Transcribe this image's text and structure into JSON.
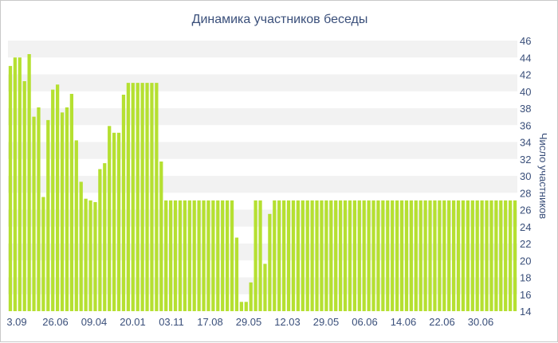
{
  "chart_data": {
    "type": "bar",
    "title": "Динамика участников беседы",
    "xlabel": "",
    "ylabel": "Число участников",
    "ylim": [
      14,
      46
    ],
    "yticks": [
      14,
      16,
      18,
      20,
      22,
      24,
      26,
      28,
      30,
      32,
      34,
      36,
      38,
      40,
      42,
      44,
      46
    ],
    "xtick_labels": [
      "3.09",
      "26.06",
      "09.04",
      "20.01",
      "03.11",
      "17.08",
      "29.05",
      "12.03",
      "29.05",
      "06.06",
      "14.06",
      "22.06",
      "30.06"
    ],
    "bar_color": "#b5e031",
    "band_color": "#f2f2f2",
    "values": [
      43,
      44,
      44,
      41.2,
      44.4,
      37,
      38.1,
      27.5,
      36.6,
      40.2,
      40.8,
      37.5,
      38.1,
      39.7,
      34.2,
      29.3,
      27.3,
      27.1,
      26.9,
      30.8,
      31.5,
      35.9,
      35.1,
      35.1,
      39.6,
      41,
      41,
      41,
      41,
      41,
      41,
      41,
      31.7,
      27.1,
      27.1,
      27.1,
      27.1,
      27.1,
      27.1,
      27.1,
      27.1,
      27.1,
      27.1,
      27.1,
      27.1,
      27.1,
      27.1,
      27.1,
      22.7,
      15.1,
      15.1,
      17.4,
      27.1,
      27.1,
      19.6,
      25.5,
      27.1,
      27.1,
      27.1,
      27.1,
      27.1,
      27.1,
      27.1,
      27.1,
      27.1,
      27.1,
      27.1,
      27.1,
      27.1,
      27.1,
      27.1,
      27.1,
      27.1,
      27.1,
      27.1,
      27.1,
      27.1,
      27.1,
      27.1,
      27.1,
      27.1,
      27.1,
      27.1,
      27.1,
      27.1,
      27.1,
      27.1,
      27.1,
      27.1,
      27.1,
      27.1,
      27.1,
      27.1,
      27.1,
      27.1,
      27.1,
      27.1,
      27.1,
      27.1,
      27.1,
      27.1,
      27.1,
      27.1,
      27.1,
      27.1,
      27.1,
      27.1,
      27.1
    ]
  }
}
